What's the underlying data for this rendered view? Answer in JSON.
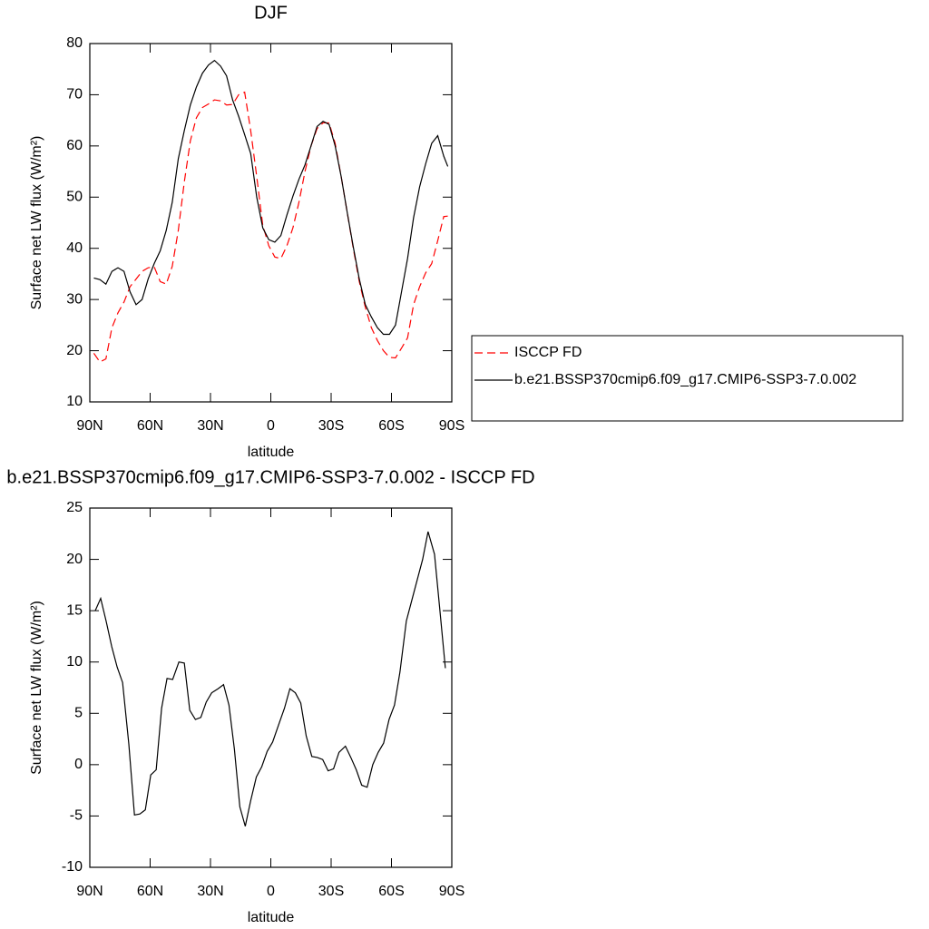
{
  "chart_data": [
    {
      "type": "line",
      "title": "DJF",
      "xlabel": "latitude",
      "ylabel": "Surface net LW flux (W/m²)",
      "x": [
        88,
        85,
        82,
        79,
        76,
        73,
        70,
        67,
        64,
        61,
        58,
        55,
        52,
        49,
        46,
        43,
        40,
        37,
        34,
        31,
        28,
        25,
        22,
        19,
        16,
        13,
        10,
        7,
        4,
        1,
        -2,
        -5,
        -8,
        -11,
        -14,
        -17,
        -20,
        -23,
        -26,
        -29,
        -32,
        -35,
        -38,
        -41,
        -44,
        -47,
        -50,
        -53,
        -56,
        -59,
        -62,
        -65,
        -68,
        -71,
        -74,
        -77,
        -80,
        -83,
        -86,
        -88
      ],
      "series": [
        {
          "name": "ISCCP FD",
          "color": "#ff0000",
          "dashed": true,
          "values": [
            19.5,
            17.8,
            18.4,
            24.5,
            27.4,
            29.5,
            32.5,
            34,
            35.5,
            36.2,
            36.4,
            33.5,
            33,
            36.5,
            43.5,
            53,
            61,
            65.5,
            67.5,
            68.2,
            69,
            68.8,
            68,
            68.1,
            70,
            70.5,
            63,
            54,
            44.5,
            40.5,
            38.3,
            38,
            40.5,
            44,
            49,
            55,
            60,
            63.4,
            64.5,
            64.5,
            60.5,
            54,
            47,
            40,
            33.5,
            28.5,
            24.5,
            22,
            20,
            18.7,
            18.6,
            20.5,
            22.5,
            29,
            32.5,
            35.2,
            37,
            41.5,
            46.2,
            46.3
          ]
        },
        {
          "name": "b.e21.BSSP370cmip6.f09_g17.CMIP6-SSP3-7.0.002",
          "color": "#000000",
          "dashed": false,
          "values": [
            34.2,
            33.9,
            33,
            35.5,
            36.2,
            35.5,
            31.5,
            29,
            30,
            34,
            37,
            39.5,
            43.5,
            49,
            57.5,
            63,
            68,
            71.5,
            74.2,
            75.8,
            76.7,
            75.6,
            73.7,
            69,
            65.8,
            62.2,
            58.5,
            50,
            44,
            41.7,
            41.2,
            42.5,
            46.5,
            50.2,
            53.5,
            56.3,
            60,
            63.8,
            64.8,
            64.2,
            60,
            54,
            47,
            40.3,
            34,
            29,
            26.6,
            24.5,
            23.2,
            23.2,
            25,
            31.5,
            38,
            46,
            52,
            56.5,
            60.5,
            62,
            58,
            56
          ]
        }
      ],
      "xlim": [
        90,
        -90
      ],
      "xticks": [
        {
          "value": 90,
          "label": "90N"
        },
        {
          "value": 60,
          "label": "60N"
        },
        {
          "value": 30,
          "label": "30N"
        },
        0,
        {
          "value": -30,
          "label": "30S"
        },
        {
          "value": -60,
          "label": "60S"
        },
        {
          "value": -90,
          "label": "90S"
        }
      ],
      "ylim": [
        10,
        80
      ],
      "yticks": [
        10,
        20,
        30,
        40,
        50,
        60,
        70,
        80
      ],
      "legend": "right",
      "grid": false
    },
    {
      "type": "line",
      "title": "b.e21.BSSP370cmip6.f09_g17.CMIP6-SSP3-7.0.002 - ISCCP FD",
      "xlabel": "latitude",
      "ylabel": "Surface net LW flux (W/m²)",
      "x": [
        87.3,
        84.6,
        81.9,
        79.1,
        76.4,
        73.7,
        70.6,
        67.8,
        65.1,
        62.4,
        59.7,
        57.0,
        54.3,
        51.6,
        48.8,
        45.7,
        43.0,
        40.3,
        37.5,
        34.8,
        32.1,
        29.4,
        26.2,
        23.5,
        20.8,
        18.1,
        15.4,
        12.7,
        10.0,
        7.2,
        4.5,
        1.8,
        -0.9,
        -4.1,
        -6.8,
        -9.5,
        -12.2,
        -14.9,
        -17.6,
        -20.4,
        -23.1,
        -25.8,
        -28.5,
        -31.2,
        -33.9,
        -37.1,
        -39.8,
        -42.5,
        -45.2,
        -47.9,
        -50.7,
        -53.4,
        -56.1,
        -58.8,
        -61.5,
        -64.2,
        -67.4,
        -70.1,
        -72.8,
        -75.5,
        -78.2,
        -81.4,
        -84.1,
        -86.8
      ],
      "series": [
        {
          "color": "#000000",
          "dashed": false,
          "values": [
            15,
            16.2,
            14,
            11.5,
            9.5,
            8,
            2,
            -4.9,
            -4.8,
            -4.4,
            -1,
            -0.5,
            5.5,
            8.4,
            8.3,
            10,
            9.9,
            5.3,
            4.4,
            4.6,
            6.1,
            7,
            7.4,
            7.8,
            5.8,
            1.5,
            -4.1,
            -6,
            -3.5,
            -1.2,
            -0.2,
            1.3,
            2.2,
            4,
            5.5,
            7.4,
            7,
            6,
            2.8,
            0.8,
            0.7,
            0.5,
            -0.6,
            -0.4,
            1.2,
            1.8,
            0.7,
            -0.5,
            -2,
            -2.2,
            0,
            1.2,
            2.1,
            4.4,
            5.8,
            9,
            14,
            16,
            18,
            20,
            22.7,
            20.5,
            15,
            9.4
          ]
        }
      ],
      "xlim": [
        90,
        -90
      ],
      "xticks": [
        {
          "value": 90,
          "label": "90N"
        },
        {
          "value": 60,
          "label": "60N"
        },
        {
          "value": 30,
          "label": "30N"
        },
        0,
        {
          "value": -30,
          "label": "30S"
        },
        {
          "value": -60,
          "label": "60S"
        },
        {
          "value": -90,
          "label": "90S"
        }
      ],
      "ylim": [
        -10,
        25
      ],
      "yticks": [
        -10,
        -5,
        0,
        5,
        10,
        15,
        20,
        25
      ],
      "grid": false
    }
  ]
}
